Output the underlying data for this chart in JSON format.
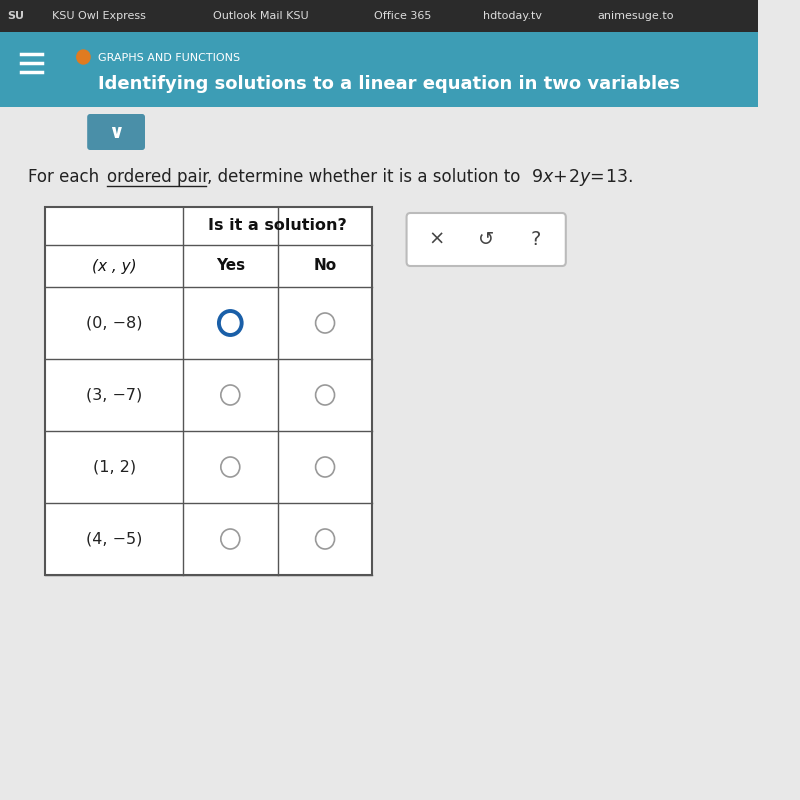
{
  "bg_color": "#e8e8e8",
  "browser_bar_color": "#2b2b2b",
  "browser_text_color": "#dddddd",
  "header_bg": "#3d9db5",
  "header_text_color": "#ffffff",
  "header_label": "GRAPHS AND FUNCTIONS",
  "header_subtitle": "Identifying solutions to a linear equation in two variables",
  "content_bg": "#e8e8e8",
  "pairs": [
    "(0, −8)",
    "(3, −7)",
    "(1, 2)",
    "(4, −5)"
  ],
  "yes_selected": [
    true,
    false,
    false,
    false
  ],
  "no_selected": [
    false,
    false,
    false,
    false
  ],
  "table_border_color": "#555555",
  "radio_color_default": "#999999",
  "radio_color_selected": "#1a5fa8",
  "col_header": "Is it a solution?",
  "col_yes": "Yes",
  "col_no": "No",
  "col_xy": "(x , y)",
  "white_bg": "#ffffff",
  "orange_dot": "#e07b20",
  "chevron_bg": "#4a8fa8",
  "btn_border": "#bbbbbb"
}
